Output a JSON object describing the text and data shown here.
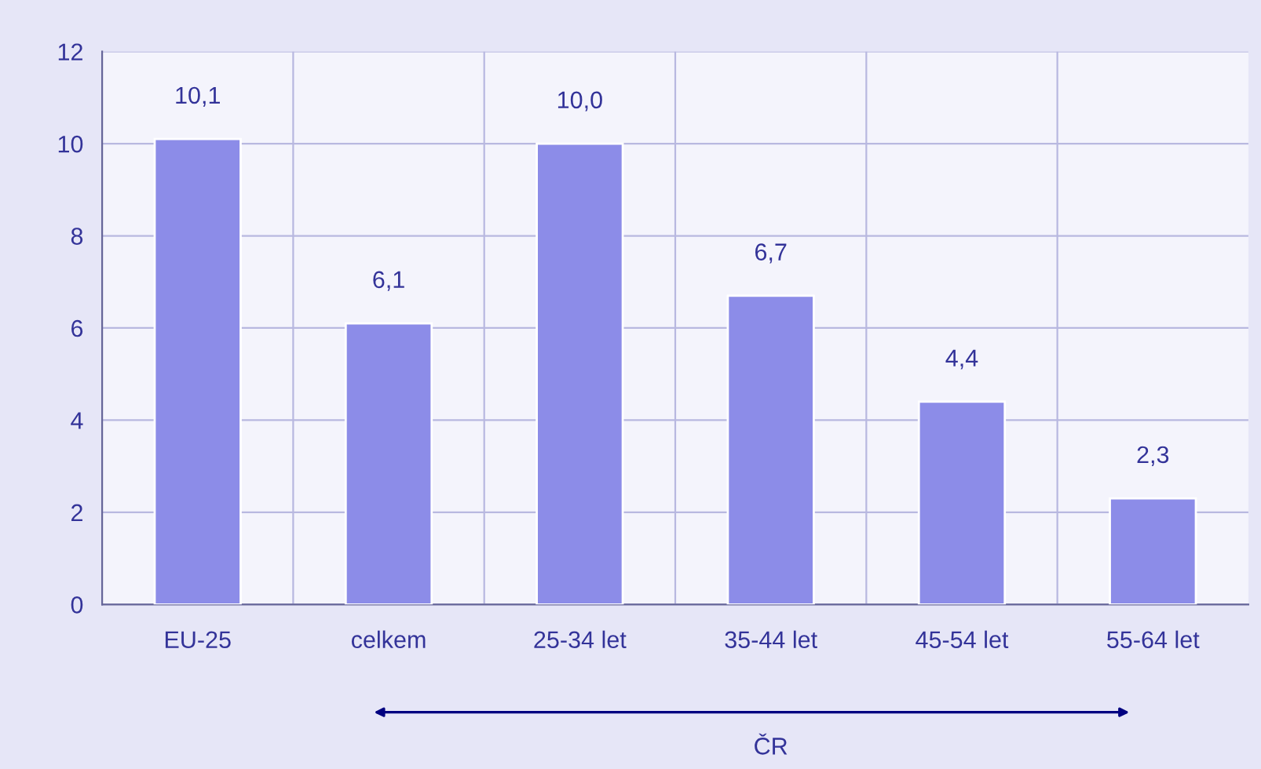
{
  "chart_data": {
    "type": "bar",
    "categories": [
      "EU-25",
      "celkem",
      "25-34 let",
      "35-44 let",
      "45-54 let",
      "55-64 let"
    ],
    "values": [
      10.1,
      6.1,
      10.0,
      6.7,
      4.4,
      2.3
    ],
    "value_labels": [
      "10,1",
      "6,1",
      "10,0",
      "6,7",
      "4,4",
      "2,3"
    ],
    "color": "#8c8ce8",
    "ylim": [
      0,
      12
    ],
    "yticks": [
      0,
      2,
      4,
      6,
      8,
      10,
      12
    ],
    "grid": true,
    "annotations": [
      "ČR"
    ]
  }
}
